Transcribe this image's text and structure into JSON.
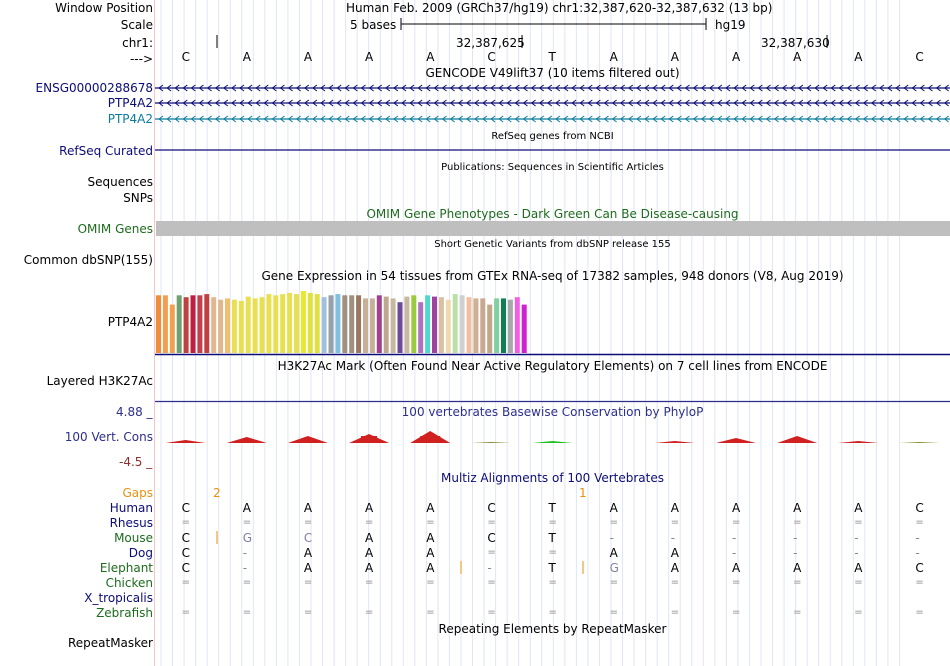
{
  "header": {
    "window_position_label": "Window Position",
    "window_position_value": "Human Feb. 2009 (GRCh37/hg19)   chr1:32,387,620-32,387,632 (13 bp)",
    "scale_label": "Scale",
    "scale_value": "5 bases",
    "scale_assembly": "hg19",
    "chrom_label": "chr1:",
    "coord1": "32,387,625",
    "coord2": "32,387,630",
    "strand_label": "--->",
    "bases": [
      "C",
      "A",
      "A",
      "A",
      "A",
      "C",
      "T",
      "A",
      "A",
      "A",
      "A",
      "A",
      "C"
    ]
  },
  "gencode": {
    "title": "GENCODE V49lift37 (10 items filtered out)",
    "tracks": [
      {
        "name": "ENSG00000288678",
        "color": "#0c0c78"
      },
      {
        "name": "PTP4A2",
        "color": "#0c0c78"
      },
      {
        "name": "PTP4A2",
        "color": "#0c7c9c"
      }
    ]
  },
  "refseq": {
    "title": "RefSeq genes from NCBI",
    "label": "RefSeq Curated"
  },
  "publications": {
    "title": "Publications: Sequences in Scientific Articles",
    "label1": "Sequences",
    "label2": "SNPs"
  },
  "omim": {
    "title": "OMIM Gene Phenotypes - Dark Green Can Be Disease-causing",
    "label": "OMIM Genes",
    "color": "#1d6b1d"
  },
  "dbsnp": {
    "title": "Short Genetic Variants from dbSNP release 155",
    "label": "Common dbSNP(155)"
  },
  "gtex": {
    "title": "Gene Expression in 54 tissues from GTEx RNA-seq of 17382 samples, 948 donors (V8, Aug 2019)",
    "label": "PTP4A2",
    "chart_data": {
      "type": "bar",
      "title": "Gene Expression in 54 tissues from GTEx RNA-seq of 17382 samples, 948 donors (V8, Aug 2019)",
      "values": [
        0.93,
        0.93,
        0.78,
        0.93,
        0.9,
        0.93,
        0.93,
        0.95,
        0.9,
        0.86,
        0.88,
        0.86,
        0.84,
        0.91,
        0.88,
        0.9,
        0.95,
        0.93,
        0.95,
        0.97,
        0.95,
        1.0,
        0.97,
        0.95,
        0.9,
        0.93,
        0.95,
        0.93,
        0.93,
        0.93,
        0.88,
        0.88,
        0.93,
        0.91,
        0.88,
        0.82,
        0.91,
        0.93,
        0.82,
        0.93,
        0.91,
        0.9,
        0.86,
        0.95,
        0.93,
        0.9,
        0.88,
        0.88,
        0.78,
        0.88,
        0.88,
        0.86,
        0.9,
        0.78
      ],
      "colors": [
        "#f08c3c",
        "#f0a050",
        "#f0a050",
        "#70a070",
        "#c04040",
        "#c02040",
        "#c04050",
        "#c04040",
        "#e0b890",
        "#e0b890",
        "#f0c070",
        "#e8e050",
        "#e8e050",
        "#e8e050",
        "#e8e050",
        "#e8e050",
        "#e8e050",
        "#e8e050",
        "#e8e050",
        "#e8e050",
        "#e8e050",
        "#e8e830",
        "#e0e040",
        "#e0e040",
        "#a0c0e0",
        "#98a0a8",
        "#80c0e0",
        "#a09080",
        "#a09080",
        "#987860",
        "#c8b098",
        "#c8b098",
        "#a04090",
        "#c0a890",
        "#c8b8a0",
        "#704898",
        "#c8b8a0",
        "#9aca40",
        "#b070c0",
        "#50d8d0",
        "#a040a0",
        "#d8c0a0",
        "#f0d8b0",
        "#b8e0a8",
        "#d0d0d0",
        "#f0c0a0",
        "#d0b090",
        "#c8a890",
        "#c0a888",
        "#80d0a0",
        "#108050",
        "#a8a8a8",
        "#f060e0",
        "#d020d0"
      ]
    }
  },
  "h3k27ac": {
    "title": "H3K27Ac Mark (Often Found Near Active Regulatory Elements) on 7 cell lines from ENCODE",
    "label": "Layered H3K27Ac"
  },
  "phylop": {
    "title": "100 vertebrates Basewise Conservation by PhyloP",
    "label": "100 Vert. Cons",
    "max": "4.88 _",
    "min": "-4.5 _"
  },
  "multiz": {
    "title": "Multiz Alignments of 100 Vertebrates",
    "gaps_label": "Gaps",
    "gap1": "2",
    "gap2": "1",
    "species": [
      {
        "name": "Human",
        "seq": [
          "C",
          "A",
          "A",
          "A",
          "A",
          "C",
          "T",
          "A",
          "A",
          "A",
          "A",
          "A",
          "C"
        ]
      },
      {
        "name": "Rhesus",
        "seq": [
          "=",
          "=",
          "=",
          "=",
          "=",
          "=",
          "=",
          "=",
          "=",
          "=",
          "=",
          "=",
          "="
        ]
      },
      {
        "name": "Mouse",
        "seq": [
          "C",
          "G",
          "C",
          "A",
          "A",
          "C",
          "T",
          "-",
          "-",
          "-",
          "-",
          "-",
          "-"
        ]
      },
      {
        "name": "Dog",
        "seq": [
          "C",
          "-",
          "A",
          "A",
          "A",
          "=",
          "=",
          "A",
          "A",
          "-",
          "-",
          "-",
          "-"
        ]
      },
      {
        "name": "Elephant",
        "seq": [
          "C",
          "-",
          "A",
          "A",
          "A",
          "-",
          "T",
          "G",
          "A",
          "A",
          "A",
          "A",
          "C"
        ]
      },
      {
        "name": "Chicken",
        "seq": [
          "=",
          "=",
          "=",
          "=",
          "=",
          "=",
          "=",
          "=",
          "=",
          "=",
          "=",
          "=",
          "="
        ]
      },
      {
        "name": "X_tropicalis",
        "seq": [
          "",
          "",
          "",
          "",
          "",
          "",
          "",
          "",
          "",
          "",
          "",
          "",
          ""
        ]
      },
      {
        "name": "Zebrafish",
        "seq": [
          "=",
          "=",
          "=",
          "=",
          "=",
          "=",
          "=",
          "=",
          "=",
          "=",
          "=",
          "=",
          "="
        ]
      }
    ]
  },
  "repeatmasker": {
    "title": "Repeating Elements by RepeatMasker",
    "label": "RepeatMasker"
  }
}
